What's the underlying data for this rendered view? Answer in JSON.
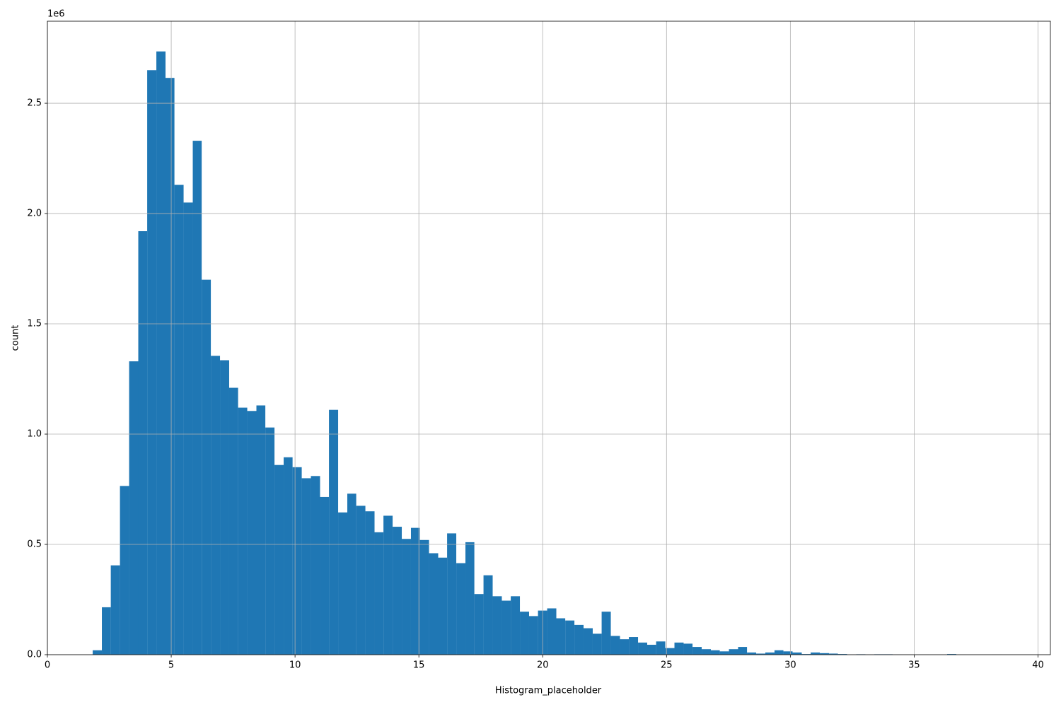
{
  "chart_data": {
    "type": "histogram",
    "x_label": "Histogram_placeholder",
    "y_label": "count",
    "offset_text": "1e6",
    "color": "#1f77b4",
    "grid": true,
    "bins": [
      1.83,
      2.2,
      2.56,
      2.93,
      3.3,
      3.67,
      4.03,
      4.4,
      4.77,
      5.13,
      5.5,
      5.87,
      6.23,
      6.6,
      6.97,
      7.34,
      7.7,
      8.07,
      8.44,
      8.8,
      9.17,
      9.54,
      9.9,
      10.27,
      10.64,
      11.01,
      11.37,
      11.74,
      12.11,
      12.47,
      12.84,
      13.21,
      13.57,
      13.94,
      14.31,
      14.68,
      15.04,
      15.41,
      15.78,
      16.14,
      16.51,
      16.88,
      17.24,
      17.61,
      17.98,
      18.35,
      18.71,
      19.08,
      19.45,
      19.81,
      20.18,
      20.55,
      20.91,
      21.28,
      21.65,
      22.02,
      22.38,
      22.75,
      23.12,
      23.48,
      23.85,
      24.22,
      24.58,
      24.95,
      25.32,
      25.69,
      26.05,
      26.42,
      26.79,
      27.15,
      27.52,
      27.89,
      28.25,
      28.62,
      28.99,
      29.36,
      29.72,
      30.09,
      30.46,
      30.82,
      31.19,
      31.56,
      31.92,
      32.29,
      32.66,
      33.03,
      33.39,
      33.76,
      34.13,
      34.49,
      34.86,
      35.23,
      35.59,
      35.96,
      36.33,
      36.7,
      37.06,
      37.43,
      37.8,
      38.16,
      38.53
    ],
    "counts": [
      20000,
      215000,
      405000,
      765000,
      1330000,
      1920000,
      2650000,
      2735000,
      2615000,
      2130000,
      2050000,
      2330000,
      1700000,
      1355000,
      1335000,
      1210000,
      1120000,
      1105000,
      1130000,
      1030000,
      860000,
      895000,
      850000,
      800000,
      810000,
      715000,
      1110000,
      645000,
      730000,
      675000,
      650000,
      555000,
      630000,
      580000,
      525000,
      575000,
      520000,
      460000,
      440000,
      550000,
      415000,
      510000,
      275000,
      360000,
      265000,
      245000,
      265000,
      195000,
      175000,
      200000,
      210000,
      165000,
      155000,
      135000,
      120000,
      95000,
      195000,
      85000,
      70000,
      80000,
      55000,
      45000,
      60000,
      30000,
      55000,
      50000,
      35000,
      25000,
      20000,
      15000,
      25000,
      35000,
      10000,
      5000,
      10000,
      20000,
      15000,
      10000,
      3000,
      10000,
      7000,
      5000,
      3000,
      1000,
      2000,
      1000,
      2000,
      2000,
      1000,
      500,
      0,
      500,
      0,
      0,
      3000,
      500,
      0,
      0,
      0,
      500
    ],
    "xlim": [
      0,
      40.5
    ],
    "ylim": [
      0,
      2872000
    ],
    "xticks": [
      0,
      5,
      10,
      15,
      20,
      25,
      30,
      35,
      40
    ],
    "yticks": [
      {
        "value": 0,
        "label": "0.0"
      },
      {
        "value": 500000,
        "label": "0.5"
      },
      {
        "value": 1000000,
        "label": "1.0"
      },
      {
        "value": 1500000,
        "label": "1.5"
      },
      {
        "value": 2000000,
        "label": "2.0"
      },
      {
        "value": 2500000,
        "label": "2.5"
      }
    ]
  }
}
